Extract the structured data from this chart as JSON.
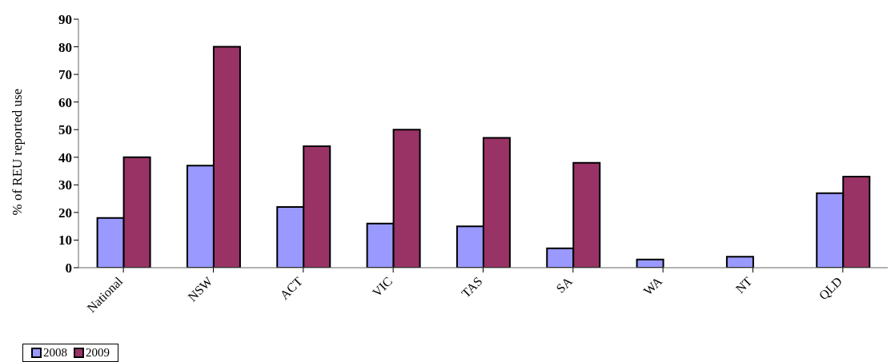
{
  "chart_data": {
    "type": "bar",
    "ylabel": "% of REU reported use",
    "categories": [
      "National",
      "NSW",
      "ACT",
      "VIC",
      "TAS",
      "SA",
      "WA",
      "NT",
      "QLD"
    ],
    "series": [
      {
        "name": "2008",
        "color": "#9999ff",
        "values": [
          18,
          37,
          22,
          16,
          15,
          7,
          3,
          4,
          27
        ]
      },
      {
        "name": "2009",
        "color": "#993366",
        "values": [
          40,
          80,
          44,
          50,
          47,
          38,
          null,
          null,
          33
        ]
      }
    ],
    "ylim": [
      0,
      90
    ],
    "yticks": [
      0,
      10,
      20,
      30,
      40,
      50,
      60,
      70,
      80,
      90
    ],
    "grid": false,
    "legend": "bottom"
  }
}
